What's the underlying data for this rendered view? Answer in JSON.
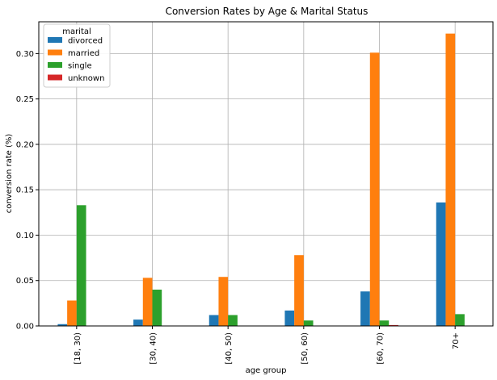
{
  "chart_data": {
    "type": "bar",
    "title": "Conversion Rates by Age & Marital Status",
    "xlabel": "age group",
    "ylabel": "conversion rate (%)",
    "categories": [
      "[18, 30)",
      "[30, 40)",
      "[40, 50)",
      "[50, 60)",
      "[60, 70)",
      "70+"
    ],
    "series": [
      {
        "name": "divorced",
        "color": "#1f77b4",
        "values": [
          0.002,
          0.007,
          0.012,
          0.017,
          0.038,
          0.136
        ]
      },
      {
        "name": "married",
        "color": "#ff7f0e",
        "values": [
          0.028,
          0.053,
          0.054,
          0.078,
          0.301,
          0.322
        ]
      },
      {
        "name": "single",
        "color": "#2ca02c",
        "values": [
          0.133,
          0.04,
          0.012,
          0.006,
          0.006,
          0.013
        ]
      },
      {
        "name": "unknown",
        "color": "#d62728",
        "values": [
          0.0,
          0.0,
          0.0,
          0.0,
          0.001,
          0.0
        ]
      }
    ],
    "ylim": [
      0,
      0.335
    ],
    "yticks": [
      0.0,
      0.05,
      0.1,
      0.15,
      0.2,
      0.25,
      0.3
    ],
    "ytick_labels": [
      "0.00",
      "0.05",
      "0.10",
      "0.15",
      "0.20",
      "0.25",
      "0.30"
    ],
    "grid": true,
    "legend": {
      "title": "marital",
      "position": "top-left"
    }
  }
}
